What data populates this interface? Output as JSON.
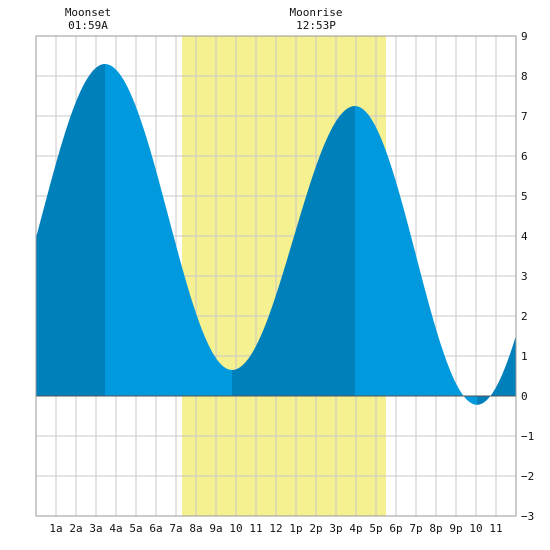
{
  "chart_data": {
    "type": "area",
    "title": "",
    "xlabel": "",
    "ylabel": "",
    "ylim": [
      -3,
      9
    ],
    "xlim": [
      0,
      24
    ],
    "grid": true,
    "x_ticks": [
      {
        "x": 1,
        "label": "1a"
      },
      {
        "x": 2,
        "label": "2a"
      },
      {
        "x": 3,
        "label": "3a"
      },
      {
        "x": 4,
        "label": "4a"
      },
      {
        "x": 5,
        "label": "5a"
      },
      {
        "x": 6,
        "label": "6a"
      },
      {
        "x": 7,
        "label": "7a"
      },
      {
        "x": 8,
        "label": "8a"
      },
      {
        "x": 9,
        "label": "9a"
      },
      {
        "x": 10,
        "label": "10"
      },
      {
        "x": 11,
        "label": "11"
      },
      {
        "x": 12,
        "label": "12"
      },
      {
        "x": 13,
        "label": "1p"
      },
      {
        "x": 14,
        "label": "2p"
      },
      {
        "x": 15,
        "label": "3p"
      },
      {
        "x": 16,
        "label": "4p"
      },
      {
        "x": 17,
        "label": "5p"
      },
      {
        "x": 18,
        "label": "6p"
      },
      {
        "x": 19,
        "label": "7p"
      },
      {
        "x": 20,
        "label": "8p"
      },
      {
        "x": 21,
        "label": "9p"
      },
      {
        "x": 22,
        "label": "10"
      },
      {
        "x": 23,
        "label": "11"
      }
    ],
    "y_ticks": [
      -3,
      -2,
      -1,
      0,
      1,
      2,
      3,
      4,
      5,
      6,
      7,
      8,
      9
    ],
    "daylight": {
      "start": 7.3,
      "end": 17.5
    },
    "events": [
      {
        "label": "Moonset",
        "time": "01:59A",
        "x": 1.98
      },
      {
        "label": "Moonrise",
        "time": "12:53P",
        "x": 12.88
      }
    ],
    "tide_extremes": [
      {
        "x": 3.45,
        "y": 8.3
      },
      {
        "x": 9.8,
        "y": 0.65
      },
      {
        "x": 15.95,
        "y": 7.25
      },
      {
        "x": 22.05,
        "y": -0.22
      }
    ],
    "tide_start": {
      "x": 0,
      "y": 3.9
    },
    "tide_end": {
      "x": 24,
      "y": 1.7
    },
    "rising_spans": [
      [
        0,
        3.45
      ],
      [
        9.8,
        15.95
      ],
      [
        22.05,
        24
      ]
    ],
    "colors": {
      "water_rising": "#0080bb",
      "water_falling": "#0099dd",
      "daylight": "#f5f090",
      "grid": "#c8c8c8",
      "background": "#ffffff"
    }
  }
}
